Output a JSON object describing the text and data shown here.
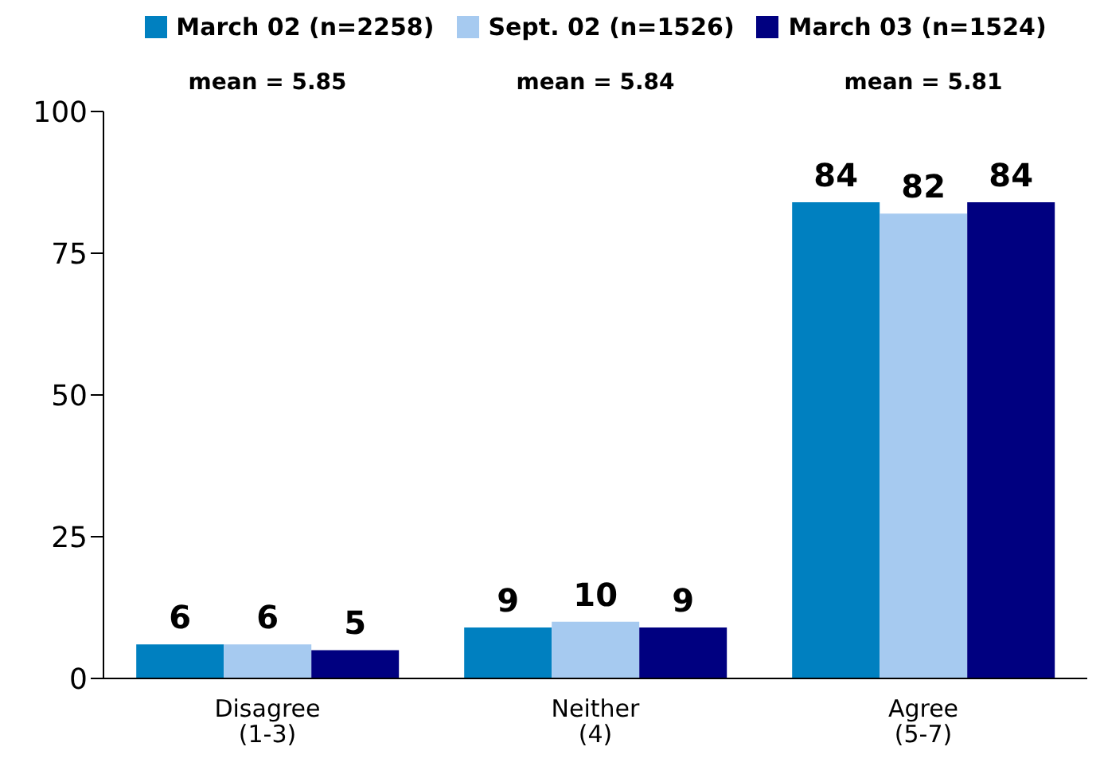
{
  "chart_data": {
    "type": "bar",
    "categories": [
      "Disagree (1-3)",
      "Neither (4)",
      "Agree (5-7)"
    ],
    "series": [
      {
        "name": "March 02 (n=2258)",
        "color": "#0080c0",
        "values": [
          6,
          9,
          84
        ]
      },
      {
        "name": "Sept. 02 (n=1526)",
        "color": "#a6caf0",
        "values": [
          6,
          10,
          82
        ]
      },
      {
        "name": "March 03 (n=1524)",
        "color": "#000080",
        "values": [
          5,
          9,
          84
        ]
      }
    ],
    "ylim": [
      0,
      100
    ],
    "yticks": [
      0,
      25,
      50,
      75,
      100
    ],
    "grid": false,
    "legend": "top",
    "data_labels": true,
    "annotations": [
      "mean = 5.85",
      "mean = 5.84",
      "mean = 5.81"
    ]
  }
}
